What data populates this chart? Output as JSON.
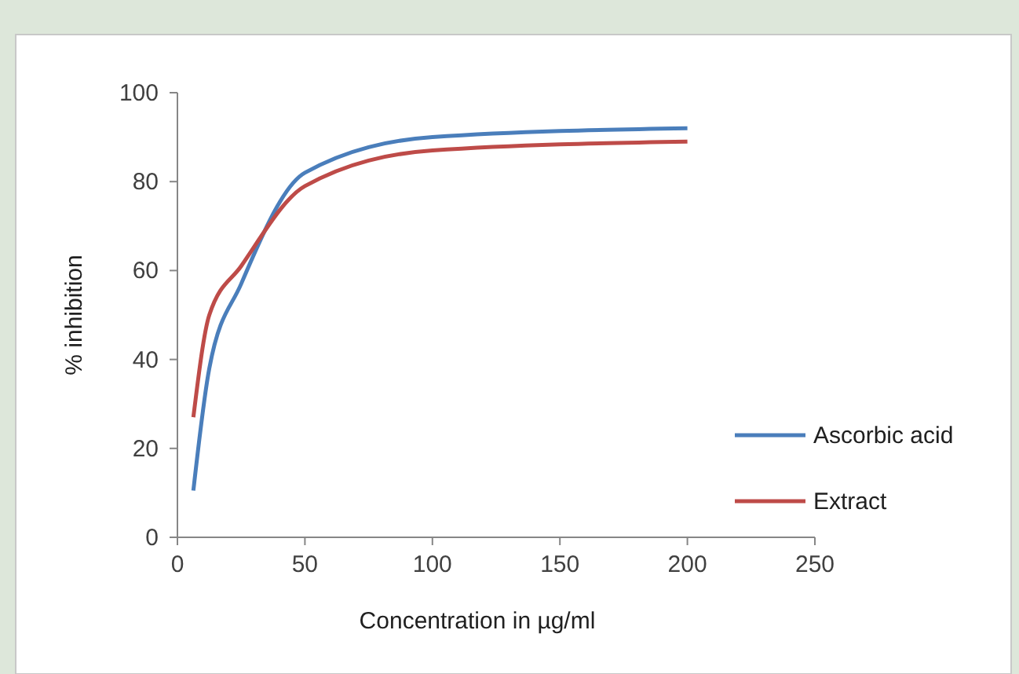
{
  "chart_data": {
    "type": "line",
    "xlabel": "Concentration in µg/ml",
    "ylabel": "% inhibition",
    "x": [
      6.25,
      12.5,
      25,
      50,
      100,
      200
    ],
    "series": [
      {
        "name": "Ascorbic acid",
        "color": "#4a7ebb",
        "values": [
          10.5,
          38,
          57,
          82,
          90,
          92
        ]
      },
      {
        "name": "Extract",
        "color": "#be4b48",
        "values": [
          27,
          50,
          61,
          79,
          87,
          89
        ]
      }
    ],
    "xlim": [
      0,
      250
    ],
    "xticks": [
      0,
      50,
      100,
      150,
      200,
      250
    ],
    "ylim": [
      0,
      100
    ],
    "yticks": [
      0,
      20,
      40,
      60,
      80,
      100
    ],
    "legend": "right",
    "marker": "none",
    "line_style": "solid",
    "grid": false
  }
}
